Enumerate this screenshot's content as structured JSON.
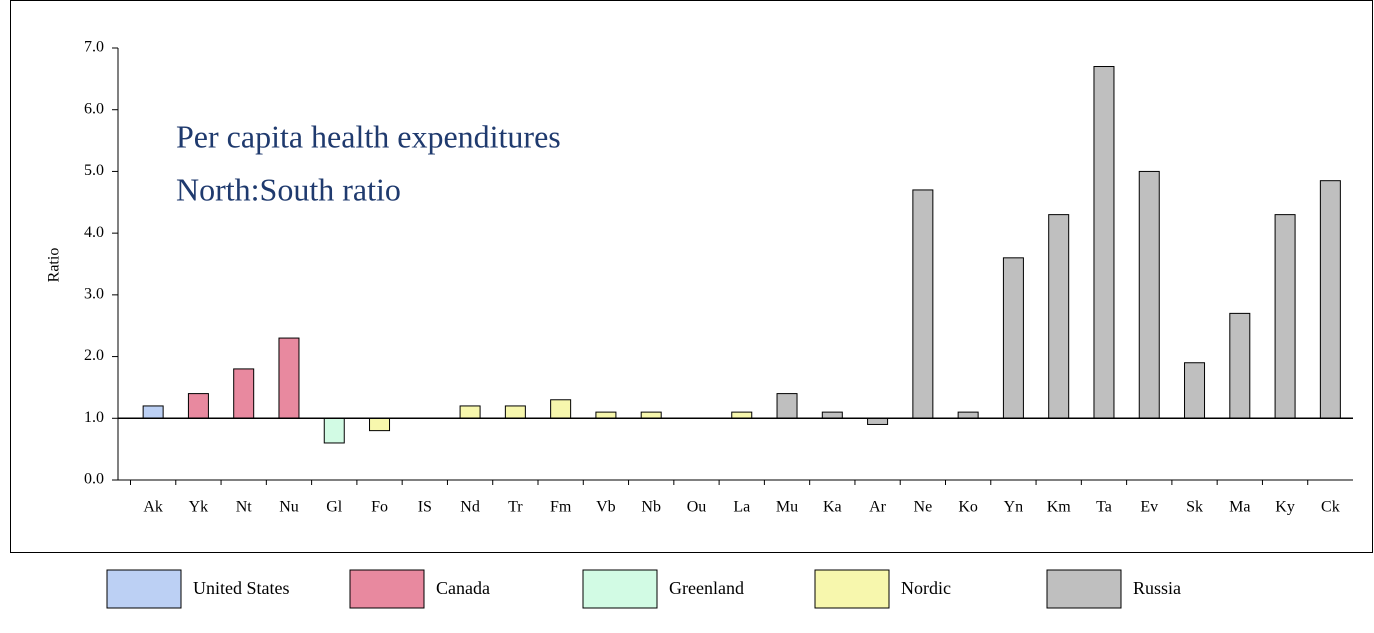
{
  "chart_data": {
    "type": "bar",
    "title": "Per capita health expenditures",
    "subtitle": "North:South ratio",
    "ylabel": "Ratio",
    "categories": [
      "Ak",
      "Yk",
      "Nt",
      "Nu",
      "Gl",
      "Fo",
      "IS",
      "Nd",
      "Tr",
      "Fm",
      "Vb",
      "Nb",
      "Ou",
      "La",
      "Mu",
      "Ka",
      "Ar",
      "Ne",
      "Ko",
      "Yn",
      "Km",
      "Ta",
      "Ev",
      "Sk",
      "Ma",
      "Ky",
      "Ck"
    ],
    "series": [
      {
        "name": "United States",
        "color": "#bcd0f4",
        "values": [
          1.2,
          null,
          null,
          null,
          null,
          null,
          null,
          null,
          null,
          null,
          null,
          null,
          null,
          null,
          null,
          null,
          null,
          null,
          null,
          null,
          null,
          null,
          null,
          null,
          null,
          null,
          null
        ]
      },
      {
        "name": "Canada",
        "color": "#e8899f",
        "values": [
          null,
          1.4,
          1.8,
          2.3,
          null,
          null,
          null,
          null,
          null,
          null,
          null,
          null,
          null,
          null,
          null,
          null,
          null,
          null,
          null,
          null,
          null,
          null,
          null,
          null,
          null,
          null,
          null
        ]
      },
      {
        "name": "Greenland",
        "color": "#d2fbe4",
        "values": [
          null,
          null,
          null,
          null,
          0.6,
          null,
          null,
          null,
          null,
          null,
          null,
          null,
          null,
          null,
          null,
          null,
          null,
          null,
          null,
          null,
          null,
          null,
          null,
          null,
          null,
          null,
          null
        ]
      },
      {
        "name": "Nordic",
        "color": "#f7f7ad",
        "values": [
          null,
          null,
          null,
          null,
          null,
          0.8,
          1.0,
          1.2,
          1.2,
          1.3,
          1.1,
          1.1,
          1.0,
          1.1,
          null,
          null,
          null,
          null,
          null,
          null,
          null,
          null,
          null,
          null,
          null,
          null,
          null
        ]
      },
      {
        "name": "Russia",
        "color": "#bfbfbf",
        "values": [
          null,
          null,
          null,
          null,
          null,
          null,
          null,
          null,
          null,
          null,
          null,
          null,
          null,
          null,
          1.4,
          1.1,
          0.9,
          4.7,
          1.1,
          3.6,
          4.3,
          6.7,
          5.0,
          1.9,
          2.7,
          4.3,
          4.85
        ]
      }
    ],
    "baseline": 1.0,
    "ylim": [
      0,
      7
    ],
    "yticks": [
      {
        "value": 0,
        "label": "0.0"
      },
      {
        "value": 1,
        "label": "1.0"
      },
      {
        "value": 2,
        "label": "2.0"
      },
      {
        "value": 3,
        "label": "3.0"
      },
      {
        "value": 4,
        "label": "4.0"
      },
      {
        "value": 5,
        "label": "5.0"
      },
      {
        "value": 6,
        "label": "6.0"
      },
      {
        "value": 7,
        "label": "7.0"
      }
    ],
    "grid": false,
    "legend": "bottom"
  }
}
